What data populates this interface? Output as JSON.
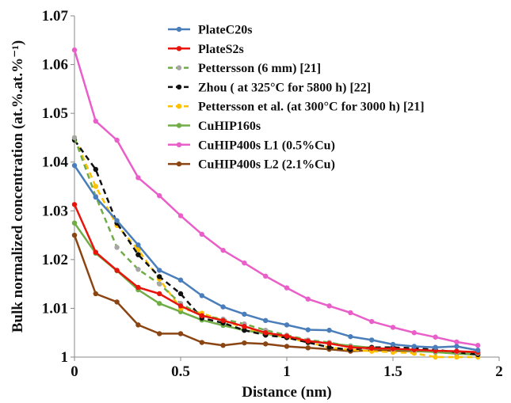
{
  "chart_data": {
    "type": "line",
    "title": "",
    "xlabel": "Distance (nm)",
    "ylabel": "Bulk normalized concentration (at.%.at.%⁻¹)",
    "xlim": [
      0,
      2
    ],
    "ylim": [
      1,
      1.07
    ],
    "xticks": [
      0,
      0.5,
      1,
      1.5,
      2
    ],
    "xtick_labels": [
      "0",
      "0.5",
      "1",
      "1.5",
      "2"
    ],
    "yticks": [
      1,
      1.01,
      1.02,
      1.03,
      1.04,
      1.05,
      1.06,
      1.07
    ],
    "ytick_labels": [
      "1",
      "1.01",
      "1.02",
      "1.03",
      "1.04",
      "1.05",
      "1.06",
      "1.07"
    ],
    "grid": false,
    "legend_position": "top-center",
    "series": [
      {
        "name": "PlateC20s",
        "color": "#4a7ebb",
        "dash": "solid",
        "marker": true,
        "x": [
          0,
          0.1,
          0.2,
          0.3,
          0.4,
          0.5,
          0.6,
          0.7,
          0.8,
          0.9,
          1.0,
          1.1,
          1.2,
          1.3,
          1.4,
          1.5,
          1.6,
          1.7,
          1.8,
          1.9
        ],
        "y": [
          1.0393,
          1.0328,
          1.028,
          1.023,
          1.0178,
          1.0158,
          1.0126,
          1.0103,
          1.0088,
          1.0075,
          1.0066,
          1.0056,
          1.0055,
          1.0042,
          1.0035,
          1.0026,
          1.0022,
          1.002,
          1.0022,
          1.0014
        ]
      },
      {
        "name": "PlateS2s",
        "color": "#e8140c",
        "dash": "solid",
        "marker": true,
        "x": [
          0,
          0.1,
          0.2,
          0.3,
          0.4,
          0.5,
          0.6,
          0.7,
          0.8,
          0.9,
          1.0,
          1.1,
          1.2,
          1.3,
          1.4,
          1.5,
          1.6,
          1.7,
          1.8,
          1.9
        ],
        "y": [
          1.0313,
          1.0215,
          1.0178,
          1.0143,
          1.013,
          1.0105,
          1.0085,
          1.0075,
          1.0063,
          1.005,
          1.0043,
          1.0033,
          1.0028,
          1.002,
          1.0018,
          1.0017,
          1.0015,
          1.0013,
          1.0012,
          1.001
        ]
      },
      {
        "name": "Pettersson (6 mm) [21]",
        "color": "#70ad47",
        "dash": "dashed",
        "marker": true,
        "marker_color": "#a6a6a6",
        "x": [
          0,
          0.1,
          0.2,
          0.3,
          0.4,
          0.5,
          0.6,
          0.7,
          0.8,
          0.9,
          1.0,
          1.1,
          1.2,
          1.3,
          1.4,
          1.5,
          1.6,
          1.7,
          1.8,
          1.9
        ],
        "y": [
          1.045,
          1.033,
          1.0225,
          1.018,
          1.015,
          1.011,
          1.0085,
          1.0078,
          1.0068,
          1.0055,
          1.0045,
          1.0035,
          1.003,
          1.0022,
          1.0018,
          1.0016,
          1.0014,
          1.0012,
          1.001,
          1.0008
        ]
      },
      {
        "name": "Zhou ( at 325°C for 5800 h)  [22]",
        "color": "#111111",
        "dash": "dashed",
        "marker": true,
        "x": [
          0,
          0.1,
          0.2,
          0.3,
          0.4,
          0.5,
          0.6,
          0.7,
          0.8,
          0.9,
          1.0,
          1.1,
          1.2,
          1.3,
          1.4,
          1.5,
          1.6,
          1.7,
          1.8,
          1.9
        ],
        "y": [
          1.0445,
          1.0385,
          1.0275,
          1.021,
          1.0165,
          1.013,
          1.008,
          1.007,
          1.0055,
          1.0045,
          1.004,
          1.003,
          1.002,
          1.0015,
          1.002,
          1.002,
          1.0018,
          1.0015,
          1.001,
          1.0005
        ]
      },
      {
        "name": "Pettersson et al. (at 300°C for 3000 h) [21]",
        "color": "#ffc000",
        "dash": "dashed",
        "marker": true,
        "x": [
          0,
          0.1,
          0.2,
          0.3,
          0.4,
          0.5,
          0.6,
          0.7,
          0.8,
          0.9,
          1.0,
          1.1,
          1.2,
          1.3,
          1.4,
          1.5,
          1.6,
          1.7,
          1.8,
          1.9
        ],
        "y": [
          1.045,
          1.035,
          1.027,
          1.022,
          1.016,
          1.01,
          1.009,
          1.0075,
          1.006,
          1.005,
          1.004,
          1.003,
          1.002,
          1.0015,
          1.0012,
          1.001,
          1.0008,
          1.0,
          1.0,
          1.0
        ]
      },
      {
        "name": "CuHIP160s",
        "color": "#70ad47",
        "dash": "solid",
        "marker": true,
        "x": [
          0,
          0.1,
          0.2,
          0.3,
          0.4,
          0.5,
          0.6,
          0.7,
          0.8,
          0.9,
          1.0,
          1.1,
          1.2,
          1.3,
          1.4,
          1.5,
          1.6,
          1.7,
          1.8,
          1.9
        ],
        "y": [
          1.0275,
          1.0213,
          1.0177,
          1.0138,
          1.011,
          1.0093,
          1.0076,
          1.0065,
          1.0055,
          1.0048,
          1.004,
          1.0033,
          1.0028,
          1.0023,
          1.0019,
          1.0016,
          1.0013,
          1.001,
          1.0007,
          1.0005
        ]
      },
      {
        "name": "CuHIP400s L1 (0.5%Cu)",
        "color": "#e95ec8",
        "dash": "solid",
        "marker": true,
        "x": [
          0,
          0.1,
          0.2,
          0.3,
          0.4,
          0.5,
          0.6,
          0.7,
          0.8,
          0.9,
          1.0,
          1.1,
          1.2,
          1.3,
          1.4,
          1.5,
          1.6,
          1.7,
          1.8,
          1.9
        ],
        "y": [
          1.063,
          1.0484,
          1.0445,
          1.0368,
          1.0331,
          1.029,
          1.0252,
          1.0219,
          1.0193,
          1.0166,
          1.0142,
          1.0119,
          1.0105,
          1.0091,
          1.0073,
          1.0061,
          1.005,
          1.0041,
          1.0031,
          1.0024
        ]
      },
      {
        "name": "CuHIP400s L2 (2.1%Cu)",
        "color": "#8b4513",
        "dash": "solid",
        "marker": true,
        "x": [
          0,
          0.1,
          0.2,
          0.3,
          0.4,
          0.5,
          0.6,
          0.7,
          0.8,
          0.9,
          1.0,
          1.1,
          1.2,
          1.3,
          1.4,
          1.5,
          1.6,
          1.7,
          1.8,
          1.9
        ],
        "y": [
          1.025,
          1.013,
          1.0113,
          1.0066,
          1.0048,
          1.0048,
          1.003,
          1.0024,
          1.0029,
          1.0027,
          1.0022,
          1.0019,
          1.0016,
          1.0012,
          1.0014,
          1.0013,
          1.0012,
          1.0011,
          1.0012,
          1.0008
        ]
      }
    ]
  }
}
